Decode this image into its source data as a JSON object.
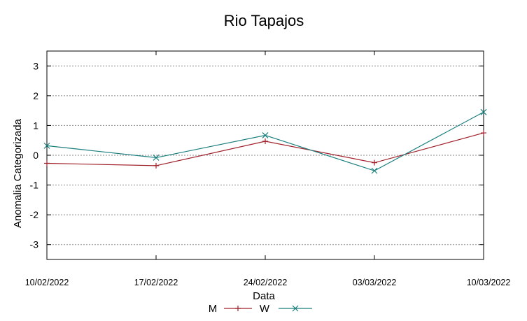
{
  "chart_data": {
    "type": "line",
    "title": "Rio Tapajos",
    "xlabel": "Data",
    "ylabel": "Anomalia Categorizada",
    "categories": [
      "10/02/2022",
      "17/02/2022",
      "24/02/2022",
      "03/03/2022",
      "10/03/2022"
    ],
    "yticks": [
      "3",
      "2",
      "1",
      "0",
      "-1",
      "-2",
      "-3"
    ],
    "ylim": [
      -3.5,
      3.5
    ],
    "grid": true,
    "legend_position": "bottom",
    "series": [
      {
        "name": "M",
        "values": [
          -0.27,
          -0.35,
          0.47,
          -0.25,
          0.75
        ],
        "color": "#a0202a",
        "marker": "plus"
      },
      {
        "name": "W",
        "values": [
          0.32,
          -0.08,
          0.67,
          -0.52,
          1.45
        ],
        "color": "#1a7e7e",
        "marker": "cross"
      }
    ]
  }
}
